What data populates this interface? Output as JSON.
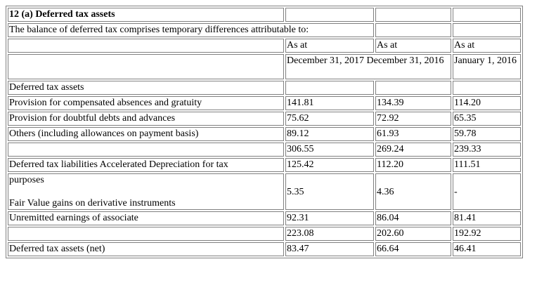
{
  "title": "12 (a) Deferred tax assets",
  "intro": "The balance of deferred tax comprises temporary differences attributable to:",
  "header": {
    "col1_line1": "As at",
    "col2_line1": "As at",
    "col3_line1": "As at",
    "col1_line2": "December 31, 2017",
    "col2_line2": "December 31, 2016",
    "col3_line2": "January 1, 2016"
  },
  "section_assets": "Deferred tax assets",
  "rows_assets": [
    {
      "label": "Provision for compensated absences and gratuity",
      "v1": "141.81",
      "v2": "134.39",
      "v3": "114.20"
    },
    {
      "label": "Provision for doubtful debts and advances",
      "v1": "75.62",
      "v2": "72.92",
      "v3": "65.35"
    },
    {
      "label": "Others (including allowances on payment basis)",
      "v1": "89.12",
      "v2": "61.93",
      "v3": "59.78"
    }
  ],
  "subtotal_assets": {
    "v1": "306.55",
    "v2": "269.24",
    "v3": "239.33"
  },
  "liab_depr": {
    "label": "Deferred tax liabilities Accelerated Depreciation for tax",
    "v1": "125.42",
    "v2": "112.20",
    "v3": "111.51"
  },
  "fair_value": {
    "label_line1": "purposes",
    "label_line2": "Fair Value gains on derivative instruments",
    "v1": "5.35",
    "v2": "4.36",
    "v3": "-"
  },
  "unremitted": {
    "label": "Unremitted earnings of associate",
    "v1": "92.31",
    "v2": "86.04",
    "v3": "81.41"
  },
  "subtotal_liab": {
    "v1": "223.08",
    "v2": "202.60",
    "v3": "192.92"
  },
  "net": {
    "label": "Deferred tax assets (net)",
    "v1": "83.47",
    "v2": "66.64",
    "v3": "46.41"
  }
}
